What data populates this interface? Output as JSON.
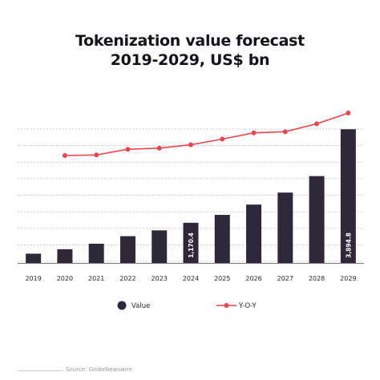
{
  "chart_data": {
    "type": "bar",
    "title_line1": "Tokenization value forecast",
    "title_line2": "2019-2029, US$ bn",
    "categories": [
      "2019",
      "2020",
      "2021",
      "2022",
      "2023",
      "2024",
      "2025",
      "2026",
      "2027",
      "2028",
      "2029"
    ],
    "series": [
      {
        "name": "Value",
        "type": "bar",
        "color": "#2e2838",
        "values": [
          270,
          400,
          560,
          780,
          950,
          1170.4,
          1400,
          1700,
          2050,
          2530,
          3894.8
        ],
        "data_labels": {
          "5": "1,170.4",
          "10": "3,894.8"
        }
      },
      {
        "name": "Y-O-Y",
        "type": "line",
        "color": "#e8474e",
        "values": [
          null,
          0.47,
          0.48,
          0.58,
          0.6,
          0.66,
          0.76,
          0.87,
          0.89,
          1.03,
          1.22
        ]
      }
    ],
    "legend_position": "bottom",
    "grid": true,
    "ylim": [
      0,
      3900
    ]
  },
  "source_text": "Source: GlobeNewswire"
}
